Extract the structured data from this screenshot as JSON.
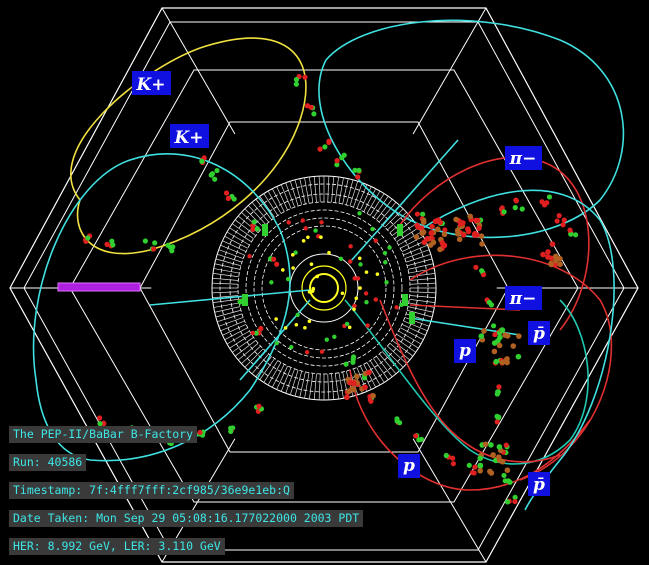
{
  "particle_labels": {
    "kaon_1": "K+",
    "kaon_2": "K+",
    "pion_1": "π−",
    "pion_2": "π−",
    "antiproton_1": "p̄",
    "antiproton_2": "p̄",
    "proton_1": "p",
    "proton_2": "p"
  },
  "info": {
    "facility": "The PEP-II/BaBar B-Factory",
    "run": "Run: 40586",
    "timestamp": "Timestamp: 7f:4fff7fff:2cf985/36e9e1eb:Q",
    "date_taken": "Date Taken: Mon Sep 29 05:08:16.177022000 2003 PDT",
    "energies": "HER: 8.992 GeV, LER: 3.110 GeV"
  },
  "colors": {
    "background": "#000000",
    "detector_lines": "#ffffff",
    "label_box": "#1010e0",
    "track_cyan": "#40e0e0",
    "track_yellow": "#f0e040",
    "track_red": "#e03030",
    "track_teal": "#20c8b0",
    "hit_red": "#e02020",
    "hit_green": "#30d030",
    "hit_brown": "#b06020",
    "hit_yellow": "#ffff20",
    "cluster_magenta": "#b020e0",
    "info_text": "#3ee6e6",
    "info_bg": "#3a3a3a"
  }
}
